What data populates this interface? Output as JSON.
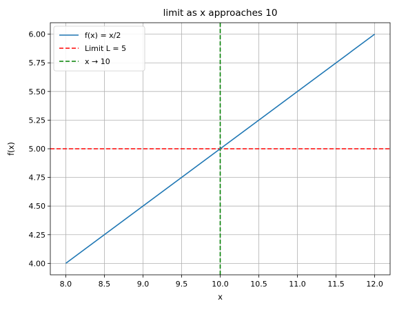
{
  "chart_data": {
    "type": "line",
    "title": "limit as x approaches 10",
    "xlabel": "x",
    "ylabel": "f(x)",
    "xlim": [
      7.8,
      12.2
    ],
    "ylim": [
      3.9,
      6.1
    ],
    "xticks": [
      8.0,
      8.5,
      9.0,
      9.5,
      10.0,
      10.5,
      11.0,
      11.5,
      12.0
    ],
    "xtick_labels": [
      "8.0",
      "8.5",
      "9.0",
      "9.5",
      "10.0",
      "10.5",
      "11.0",
      "11.5",
      "12.0"
    ],
    "yticks": [
      4.0,
      4.25,
      4.5,
      4.75,
      5.0,
      5.25,
      5.5,
      5.75,
      6.0
    ],
    "ytick_labels": [
      "4.00",
      "4.25",
      "4.50",
      "4.75",
      "5.00",
      "5.25",
      "5.50",
      "5.75",
      "6.00"
    ],
    "grid": true,
    "legend_position": "top-left",
    "series": [
      {
        "name": "f(x) = x/2",
        "x": [
          8.0,
          12.0
        ],
        "y": [
          4.0,
          6.0
        ],
        "color": "#1f77b4",
        "style": "solid"
      }
    ],
    "reference_lines": [
      {
        "name": "Limit L = 5",
        "orientation": "horizontal",
        "value": 5.0,
        "color": "#ff0000",
        "style": "dashed"
      },
      {
        "name": "x → 10",
        "orientation": "vertical",
        "value": 10.0,
        "color": "#008000",
        "style": "dashed"
      }
    ]
  }
}
